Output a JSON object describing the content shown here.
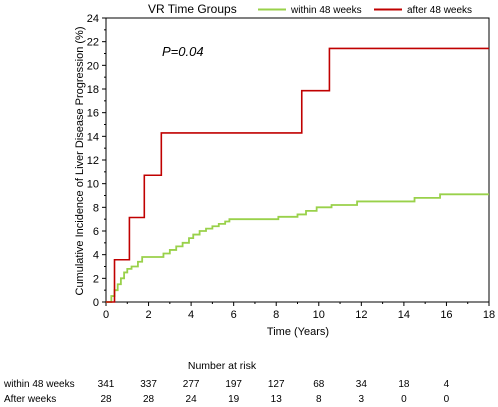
{
  "chart_data": {
    "type": "line",
    "legend": {
      "title": "VR Time Groups",
      "placement": "top"
    },
    "annotation": "P=0.04",
    "xlabel": "Time (Years)",
    "ylabel": "Cumulative Incidence of Liver Disease Progression (%)",
    "xlim": [
      0,
      18
    ],
    "ylim": [
      0,
      24
    ],
    "x_ticks": [
      0,
      2,
      4,
      6,
      8,
      10,
      12,
      14,
      16,
      18
    ],
    "y_ticks": [
      0,
      2,
      4,
      6,
      8,
      10,
      12,
      14,
      16,
      18,
      20,
      22,
      24
    ],
    "grid": false,
    "series": [
      {
        "name": "within 48 weeks",
        "color": "#99d14a",
        "step": true,
        "points": [
          [
            0,
            0
          ],
          [
            0.25,
            0.5
          ],
          [
            0.4,
            1.0
          ],
          [
            0.55,
            1.5
          ],
          [
            0.7,
            2.0
          ],
          [
            0.85,
            2.5
          ],
          [
            1.0,
            2.8
          ],
          [
            1.2,
            3.0
          ],
          [
            1.5,
            3.4
          ],
          [
            1.7,
            3.8
          ],
          [
            2.6,
            3.8
          ],
          [
            2.7,
            4.1
          ],
          [
            3.0,
            4.4
          ],
          [
            3.3,
            4.7
          ],
          [
            3.6,
            5.0
          ],
          [
            3.9,
            5.4
          ],
          [
            4.1,
            5.7
          ],
          [
            4.4,
            6.0
          ],
          [
            4.7,
            6.2
          ],
          [
            5.0,
            6.4
          ],
          [
            5.3,
            6.6
          ],
          [
            5.6,
            6.8
          ],
          [
            5.8,
            7.0
          ],
          [
            7.8,
            7.0
          ],
          [
            8.1,
            7.2
          ],
          [
            9.0,
            7.4
          ],
          [
            9.4,
            7.7
          ],
          [
            9.9,
            8.0
          ],
          [
            10.6,
            8.2
          ],
          [
            11.8,
            8.5
          ],
          [
            14.5,
            8.8
          ],
          [
            15.7,
            9.1
          ],
          [
            18.0,
            9.1
          ]
        ]
      },
      {
        "name": "after 48 weeks",
        "color": "#c00000",
        "step": true,
        "points": [
          [
            0,
            0
          ],
          [
            0.4,
            3.57
          ],
          [
            1.1,
            7.14
          ],
          [
            1.8,
            10.71
          ],
          [
            2.6,
            14.29
          ],
          [
            9.2,
            17.86
          ],
          [
            10.5,
            21.43
          ],
          [
            18.0,
            21.43
          ]
        ]
      }
    ],
    "risk_table": {
      "title": "Number at risk",
      "times": [
        0,
        2,
        4,
        6,
        8,
        10,
        12,
        14,
        16
      ],
      "rows": [
        {
          "label": "within 48 weeks",
          "values": [
            "341",
            "337",
            "277",
            "197",
            "127",
            "68",
            "34",
            "18",
            "4"
          ]
        },
        {
          "label": "After weeks",
          "values": [
            "28",
            "28",
            "24",
            "19",
            "13",
            "8",
            "3",
            "0",
            "0"
          ]
        }
      ]
    }
  }
}
